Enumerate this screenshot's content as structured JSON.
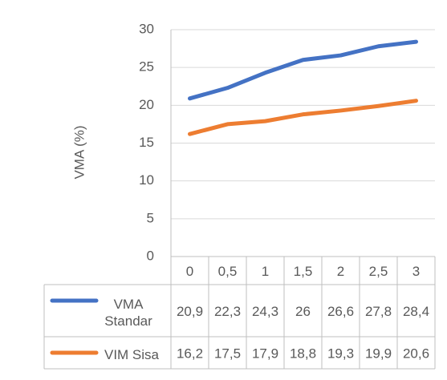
{
  "chart_data": {
    "type": "line",
    "y_label": "VMA (%)",
    "categories": [
      "0",
      "0,5",
      "1",
      "1,5",
      "2",
      "2,5",
      "3"
    ],
    "series": [
      {
        "name": "VMA Standar",
        "color": "#4472c4",
        "values": [
          20.9,
          22.3,
          24.3,
          26,
          26.6,
          27.8,
          28.4
        ],
        "value_labels": [
          "20,9",
          "22,3",
          "24,3",
          "26",
          "26,6",
          "27,8",
          "28,4"
        ]
      },
      {
        "name": "VIM Sisa",
        "color": "#ed7d31",
        "values": [
          16.2,
          17.5,
          17.9,
          18.8,
          19.3,
          19.9,
          20.6
        ],
        "value_labels": [
          "16,2",
          "17,5",
          "17,9",
          "18,8",
          "19,3",
          "19,9",
          "20,6"
        ]
      }
    ],
    "ylim": [
      0,
      30
    ],
    "yticks": [
      0,
      5,
      10,
      15,
      20,
      25,
      30
    ],
    "grid": true
  }
}
